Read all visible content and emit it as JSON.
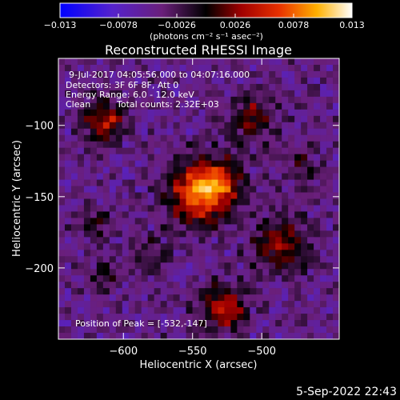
{
  "chart_data": {
    "type": "heatmap",
    "title": "Reconstructed RHESSI Image",
    "xlabel": "Heliocentric X (arcsec)",
    "ylabel": "Heliocentric Y (arcsec)",
    "x_ticks": [
      -600,
      -550,
      -500
    ],
    "x_tick_labels": [
      "−600",
      "−550",
      "−500"
    ],
    "y_ticks": [
      -100,
      -150,
      -200
    ],
    "y_tick_labels": [
      "−100",
      "−150",
      "−200"
    ],
    "xlim": [
      -647,
      -444
    ],
    "ylim": [
      -250,
      -53
    ],
    "colorbar": {
      "range": [
        -0.013,
        0.013
      ],
      "ticks": [
        -0.013,
        -0.0078,
        -0.0026,
        0.0026,
        0.0078,
        0.013
      ],
      "tick_labels": [
        "−0.013",
        "−0.0078",
        "−0.0026",
        "0.0026",
        "0.0078",
        "0.013"
      ],
      "unit_label": "(photons cm⁻² s⁻¹ asec⁻²)"
    },
    "annotations": {
      "time_range": "9-Jul-2017 04:05:56.000 to 04:07:16.000",
      "detectors": "Detectors: 3F 6F 8F, Att 0",
      "energy_range": "Energy Range: 6.0 - 12.0 keV",
      "clean": "Clean",
      "total_counts": "Total counts: 2.32E+03",
      "peak": "Position of Peak = [-532,-147]"
    },
    "peak": {
      "x": -532,
      "y": -147
    },
    "sources": [
      {
        "x": -545,
        "y": -147,
        "sigma": 15,
        "amp": 1.0
      },
      {
        "x": -528,
        "y": -140,
        "sigma": 11,
        "amp": 0.55
      },
      {
        "x": -614,
        "y": -97,
        "sigma": 10,
        "amp": 0.75
      },
      {
        "x": -528,
        "y": -228,
        "sigma": 11,
        "amp": 0.75
      },
      {
        "x": -485,
        "y": -183,
        "sigma": 14,
        "amp": 0.55
      },
      {
        "x": -508,
        "y": -95,
        "sigma": 11,
        "amp": 0.5
      },
      {
        "x": -620,
        "y": -170,
        "sigma": 9,
        "amp": 0.35
      },
      {
        "x": -615,
        "y": -205,
        "sigma": 8,
        "amp": 0.3
      },
      {
        "x": -580,
        "y": -190,
        "sigma": 10,
        "amp": 0.25
      },
      {
        "x": -470,
        "y": -130,
        "sigma": 9,
        "amp": 0.35
      }
    ]
  },
  "footer": {
    "timestamp": "5-Sep-2022 22:43"
  }
}
